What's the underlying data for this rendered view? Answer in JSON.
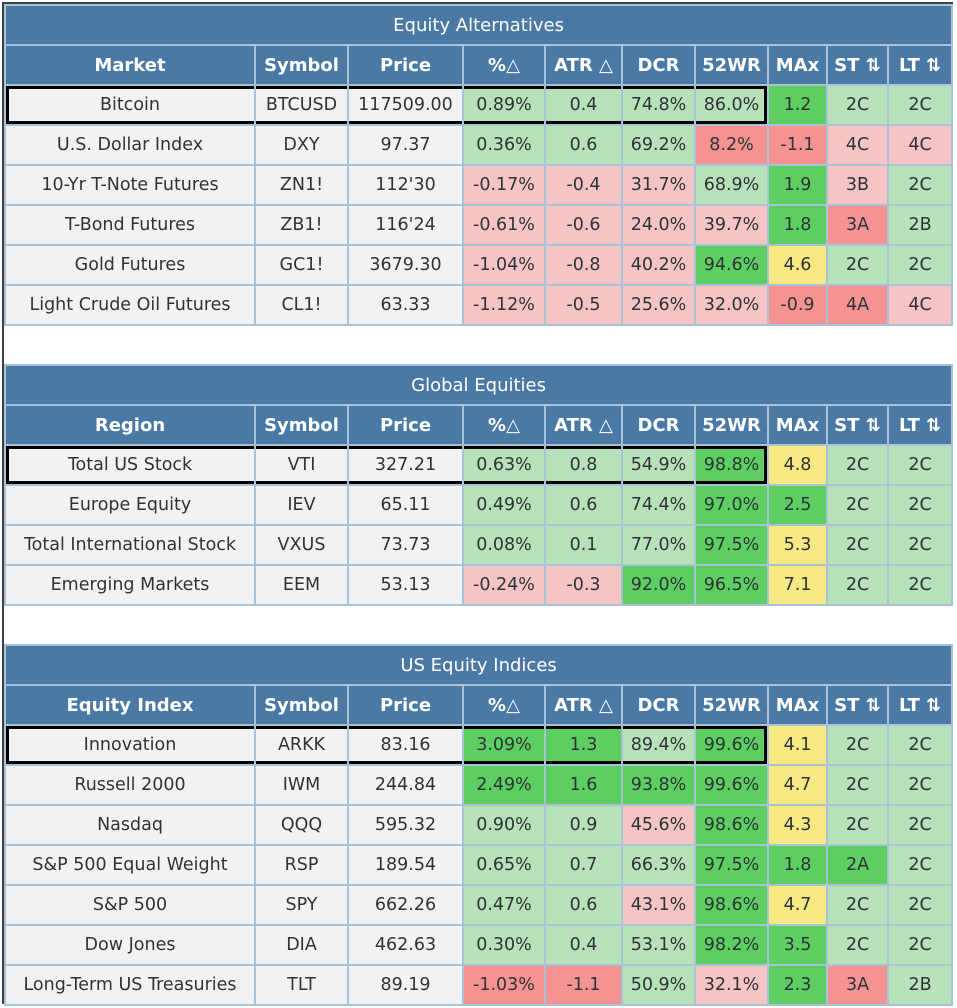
{
  "colors": {
    "header": "#4a79a5",
    "neutral": "#f2f2f2",
    "light_green": "#b7e1b9",
    "green": "#5dcf62",
    "light_red": "#f5c4c4",
    "red": "#f59393",
    "yellow": "#f6e883"
  },
  "columns_common": [
    "Symbol",
    "Price",
    "%△",
    "ATR △",
    "DCR",
    "52WR",
    "MAx",
    "ST ⇅",
    "LT ⇅"
  ],
  "sections": [
    {
      "title": "Equity Alternatives",
      "first_col": "Market",
      "rows": [
        {
          "name": "Bitcoin",
          "symbol": "BTCUSD",
          "price": "117509.00",
          "pct": "0.89%",
          "atr": "0.4",
          "dcr": "74.8%",
          "w52": "86.0%",
          "max": "1.2",
          "st": "2C",
          "lt": "2C",
          "colors": "ggggGgg",
          "selected": true
        },
        {
          "name": "U.S. Dollar Index",
          "symbol": "DXY",
          "price": "97.37",
          "pct": "0.36%",
          "atr": "0.6",
          "dcr": "69.2%",
          "w52": "8.2%",
          "max": "-1.1",
          "st": "4C",
          "lt": "4C",
          "colors": "gggRRrr"
        },
        {
          "name": "10-Yr T-Note Futures",
          "symbol": "ZN1!",
          "price": "112'30",
          "pct": "-0.17%",
          "atr": "-0.4",
          "dcr": "31.7%",
          "w52": "68.9%",
          "max": "1.9",
          "st": "3B",
          "lt": "2C",
          "colors": "rrrgGrg"
        },
        {
          "name": "T-Bond Futures",
          "symbol": "ZB1!",
          "price": "116'24",
          "pct": "-0.61%",
          "atr": "-0.6",
          "dcr": "24.0%",
          "w52": "39.7%",
          "max": "1.8",
          "st": "3A",
          "lt": "2B",
          "colors": "rrrrGRg"
        },
        {
          "name": "Gold Futures",
          "symbol": "GC1!",
          "price": "3679.30",
          "pct": "-1.04%",
          "atr": "-0.8",
          "dcr": "40.2%",
          "w52": "94.6%",
          "max": "4.6",
          "st": "2C",
          "lt": "2C",
          "colors": "rrrGygg"
        },
        {
          "name": "Light Crude Oil Futures",
          "symbol": "CL1!",
          "price": "63.33",
          "pct": "-1.12%",
          "atr": "-0.5",
          "dcr": "25.6%",
          "w52": "32.0%",
          "max": "-0.9",
          "st": "4A",
          "lt": "4C",
          "colors": "rrrrRRr"
        }
      ]
    },
    {
      "title": "Global Equities",
      "first_col": "Region",
      "rows": [
        {
          "name": "Total US Stock",
          "symbol": "VTI",
          "price": "327.21",
          "pct": "0.63%",
          "atr": "0.8",
          "dcr": "54.9%",
          "w52": "98.8%",
          "max": "4.8",
          "st": "2C",
          "lt": "2C",
          "colors": "gggGygg",
          "selected": true
        },
        {
          "name": "Europe Equity",
          "symbol": "IEV",
          "price": "65.11",
          "pct": "0.49%",
          "atr": "0.6",
          "dcr": "74.4%",
          "w52": "97.0%",
          "max": "2.5",
          "st": "2C",
          "lt": "2C",
          "colors": "gggGGgg"
        },
        {
          "name": "Total International Stock",
          "symbol": "VXUS",
          "price": "73.73",
          "pct": "0.08%",
          "atr": "0.1",
          "dcr": "77.0%",
          "w52": "97.5%",
          "max": "5.3",
          "st": "2C",
          "lt": "2C",
          "colors": "gggGygg"
        },
        {
          "name": "Emerging Markets",
          "symbol": "EEM",
          "price": "53.13",
          "pct": "-0.24%",
          "atr": "-0.3",
          "dcr": "92.0%",
          "w52": "96.5%",
          "max": "7.1",
          "st": "2C",
          "lt": "2C",
          "colors": "rrGGygg"
        }
      ]
    },
    {
      "title": "US Equity Indices",
      "first_col": "Equity Index",
      "rows": [
        {
          "name": "Innovation",
          "symbol": "ARKK",
          "price": "83.16",
          "pct": "3.09%",
          "atr": "1.3",
          "dcr": "89.4%",
          "w52": "99.6%",
          "max": "4.1",
          "st": "2C",
          "lt": "2C",
          "colors": "GGgGygg",
          "selected": true
        },
        {
          "name": "Russell 2000",
          "symbol": "IWM",
          "price": "244.84",
          "pct": "2.49%",
          "atr": "1.6",
          "dcr": "93.8%",
          "w52": "99.6%",
          "max": "4.7",
          "st": "2C",
          "lt": "2C",
          "colors": "GGGGygg"
        },
        {
          "name": "Nasdaq",
          "symbol": "QQQ",
          "price": "595.32",
          "pct": "0.90%",
          "atr": "0.9",
          "dcr": "45.6%",
          "w52": "98.6%",
          "max": "4.3",
          "st": "2C",
          "lt": "2C",
          "colors": "ggrGygg"
        },
        {
          "name": "S&P 500 Equal Weight",
          "symbol": "RSP",
          "price": "189.54",
          "pct": "0.65%",
          "atr": "0.7",
          "dcr": "66.3%",
          "w52": "97.5%",
          "max": "1.8",
          "st": "2A",
          "lt": "2C",
          "colors": "gggGGGg"
        },
        {
          "name": "S&P 500",
          "symbol": "SPY",
          "price": "662.26",
          "pct": "0.47%",
          "atr": "0.6",
          "dcr": "43.1%",
          "w52": "98.6%",
          "max": "4.7",
          "st": "2C",
          "lt": "2C",
          "colors": "ggrGygg"
        },
        {
          "name": "Dow Jones",
          "symbol": "DIA",
          "price": "462.63",
          "pct": "0.30%",
          "atr": "0.4",
          "dcr": "53.1%",
          "w52": "98.2%",
          "max": "3.5",
          "st": "2C",
          "lt": "2C",
          "colors": "gggGGgg"
        },
        {
          "name": "Long-Term US Treasuries",
          "symbol": "TLT",
          "price": "89.19",
          "pct": "-1.03%",
          "atr": "-1.1",
          "dcr": "50.9%",
          "w52": "32.1%",
          "max": "2.3",
          "st": "3A",
          "lt": "2B",
          "colors": "RRgrGRg"
        }
      ]
    }
  ]
}
